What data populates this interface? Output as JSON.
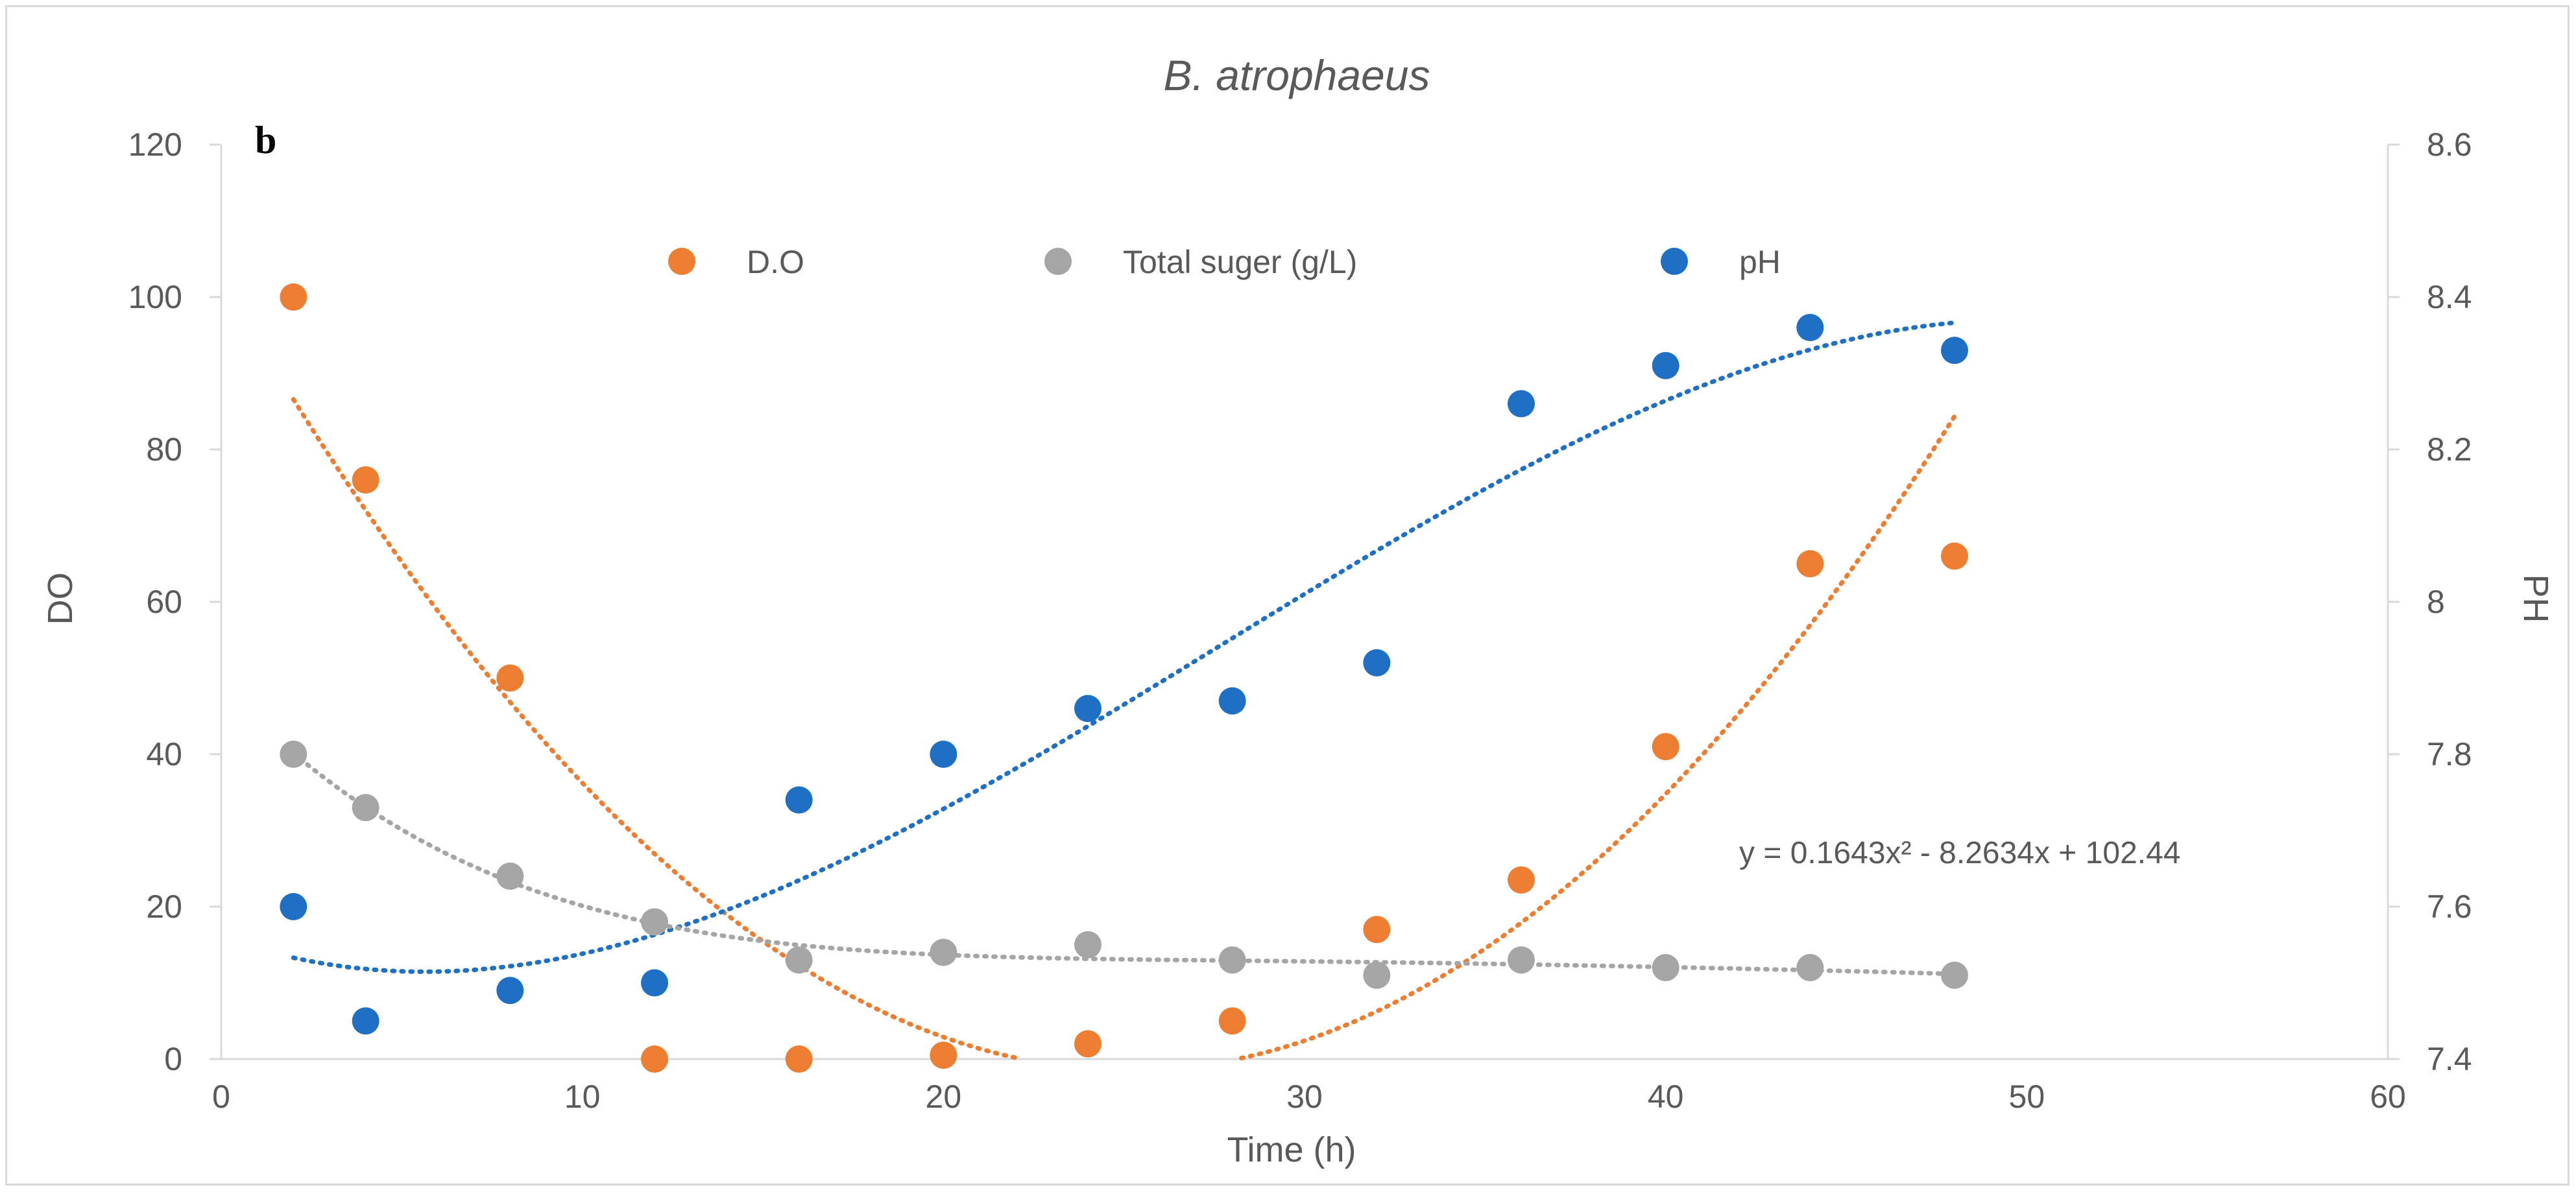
{
  "chart_data": {
    "type": "scatter",
    "title": "B. atrophaeus",
    "panel_label": "b",
    "xlabel": "Time (h)",
    "ylabel_left": "DO",
    "ylabel_right": "PH",
    "xlim": [
      0,
      60
    ],
    "ylim_left": [
      0,
      120
    ],
    "ylim_right": [
      7.4,
      8.6
    ],
    "x_ticks": [
      "0",
      "10",
      "20",
      "30",
      "40",
      "50",
      "60"
    ],
    "y_left_ticks": [
      "0",
      "20",
      "40",
      "60",
      "80",
      "100",
      "120"
    ],
    "y_right_ticks": [
      "7.4",
      "7.6",
      "7.8",
      "8",
      "8.2",
      "8.4",
      "8.6"
    ],
    "x_tick_values": [
      0,
      10,
      20,
      30,
      40,
      50,
      60
    ],
    "y_left_tick_values": [
      0,
      20,
      40,
      60,
      80,
      100,
      120
    ],
    "y_right_tick_values": [
      7.4,
      7.6,
      7.8,
      8.0,
      8.2,
      8.4,
      8.6
    ],
    "legend_position": "top",
    "series": [
      {
        "name": "D.O",
        "axis": "left",
        "color": "#ED7D31",
        "x": [
          2,
          4,
          8,
          12,
          16,
          20,
          24,
          28,
          32,
          36,
          40,
          44,
          48
        ],
        "values": [
          100,
          76,
          50,
          0,
          0,
          0.5,
          2,
          5,
          17,
          23.5,
          41,
          65,
          66
        ],
        "trendline": {
          "type": "polynomial",
          "order": 2,
          "coefficients": [
            102.44,
            -8.2634,
            0.1643
          ],
          "equation_label": "y = 0.1643x² - 8.2634x + 102.44"
        }
      },
      {
        "name": "Total suger (g/L)",
        "axis": "left",
        "color": "#A5A5A5",
        "x": [
          2,
          4,
          8,
          12,
          16,
          20,
          24,
          28,
          32,
          36,
          40,
          44,
          48
        ],
        "values": [
          40,
          33,
          24,
          18,
          13,
          14,
          15,
          13,
          11,
          13,
          12,
          12,
          11
        ],
        "trendline": {
          "type": "smooth"
        }
      },
      {
        "name": "pH",
        "axis": "right",
        "color": "#1F6FC5",
        "x": [
          2,
          4,
          8,
          12,
          16,
          20,
          24,
          28,
          32,
          36,
          40,
          44,
          48
        ],
        "values": [
          7.6,
          7.45,
          7.49,
          7.5,
          7.74,
          7.8,
          7.86,
          7.87,
          7.92,
          8.26,
          8.31,
          8.36,
          8.33
        ],
        "trendline": {
          "type": "polynomial",
          "order": 3
        }
      }
    ]
  }
}
